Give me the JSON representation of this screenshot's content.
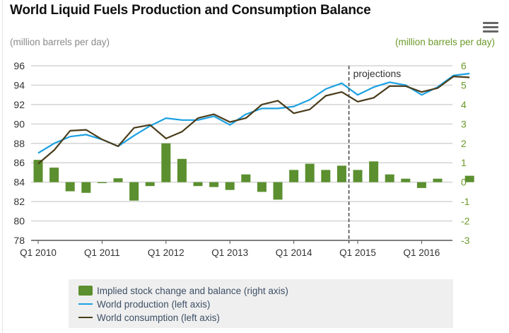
{
  "colors": {
    "production": "#1ba1e2",
    "consumption": "#4a3d1c",
    "balance": "#5b8f2f",
    "grid": "#d4d4d4",
    "left_axis_text": "#333333",
    "right_axis_text": "#6c9a2a"
  },
  "header": {
    "menu_icon": "hamburger-menu-icon"
  },
  "chart_data": {
    "type": "bar+line",
    "title": "World Liquid Fuels Production and Consumption Balance",
    "ylabel_left": "(million barrels per day)",
    "ylabel_right": "(million barrels per day)",
    "ylim_left": [
      78,
      96
    ],
    "ylim_right": [
      -3,
      6
    ],
    "yticks_left": [
      "96",
      "94",
      "92",
      "90",
      "88",
      "86",
      "84",
      "82",
      "80",
      "78"
    ],
    "yticks_right": [
      "6",
      "5",
      "4",
      "3",
      "2",
      "1",
      "0",
      "-1",
      "-2",
      "-3"
    ],
    "grid": true,
    "x_tick_labels": [
      "Q1 2010",
      "Q1 2011",
      "Q1 2012",
      "Q1 2013",
      "Q1 2014",
      "Q1 2015",
      "Q1 2016"
    ],
    "categories": [
      "Q1 2010",
      "Q2 2010",
      "Q3 2010",
      "Q4 2010",
      "Q1 2011",
      "Q2 2011",
      "Q3 2011",
      "Q4 2011",
      "Q1 2012",
      "Q2 2012",
      "Q3 2012",
      "Q4 2012",
      "Q1 2013",
      "Q2 2013",
      "Q3 2013",
      "Q4 2013",
      "Q1 2014",
      "Q2 2014",
      "Q3 2014",
      "Q4 2014",
      "Q1 2015",
      "Q2 2015",
      "Q3 2015",
      "Q4 2015",
      "Q1 2016",
      "Q2 2016",
      "Q3 2016",
      "Q4 2016"
    ],
    "annotation": "projections",
    "projection_start_after": "Q4 2014",
    "legend_position": "bottom",
    "series": [
      {
        "name": "Implied stock change and balance (right axis)",
        "type": "bar",
        "axis": "right",
        "values": [
          1.15,
          0.75,
          -0.47,
          -0.55,
          -0.05,
          0.2,
          -0.95,
          -0.2,
          2.0,
          1.2,
          -0.2,
          -0.25,
          -0.4,
          0.4,
          -0.5,
          -0.9,
          0.63,
          0.95,
          0.63,
          0.85,
          0.63,
          1.07,
          0.4,
          0.18,
          -0.3,
          0.18,
          0.0,
          0.33
        ]
      },
      {
        "name": "World production (left axis)",
        "type": "line",
        "axis": "left",
        "values": [
          87.0,
          88.0,
          88.7,
          88.9,
          88.4,
          87.7,
          88.8,
          89.8,
          90.6,
          90.4,
          90.4,
          90.8,
          89.9,
          91.0,
          91.6,
          91.6,
          91.8,
          92.5,
          93.6,
          94.2,
          93.0,
          93.8,
          94.3,
          94.0,
          93.0,
          93.8,
          95.0,
          95.2
        ]
      },
      {
        "name": "World consumption (left axis)",
        "type": "line",
        "axis": "left",
        "values": [
          85.9,
          87.3,
          89.3,
          89.4,
          88.4,
          87.7,
          89.6,
          89.9,
          88.5,
          89.2,
          90.6,
          91.0,
          90.2,
          90.6,
          92.0,
          92.4,
          91.1,
          91.5,
          92.9,
          93.3,
          92.3,
          92.7,
          93.9,
          93.9,
          93.3,
          93.7,
          94.9,
          94.8
        ]
      }
    ]
  }
}
